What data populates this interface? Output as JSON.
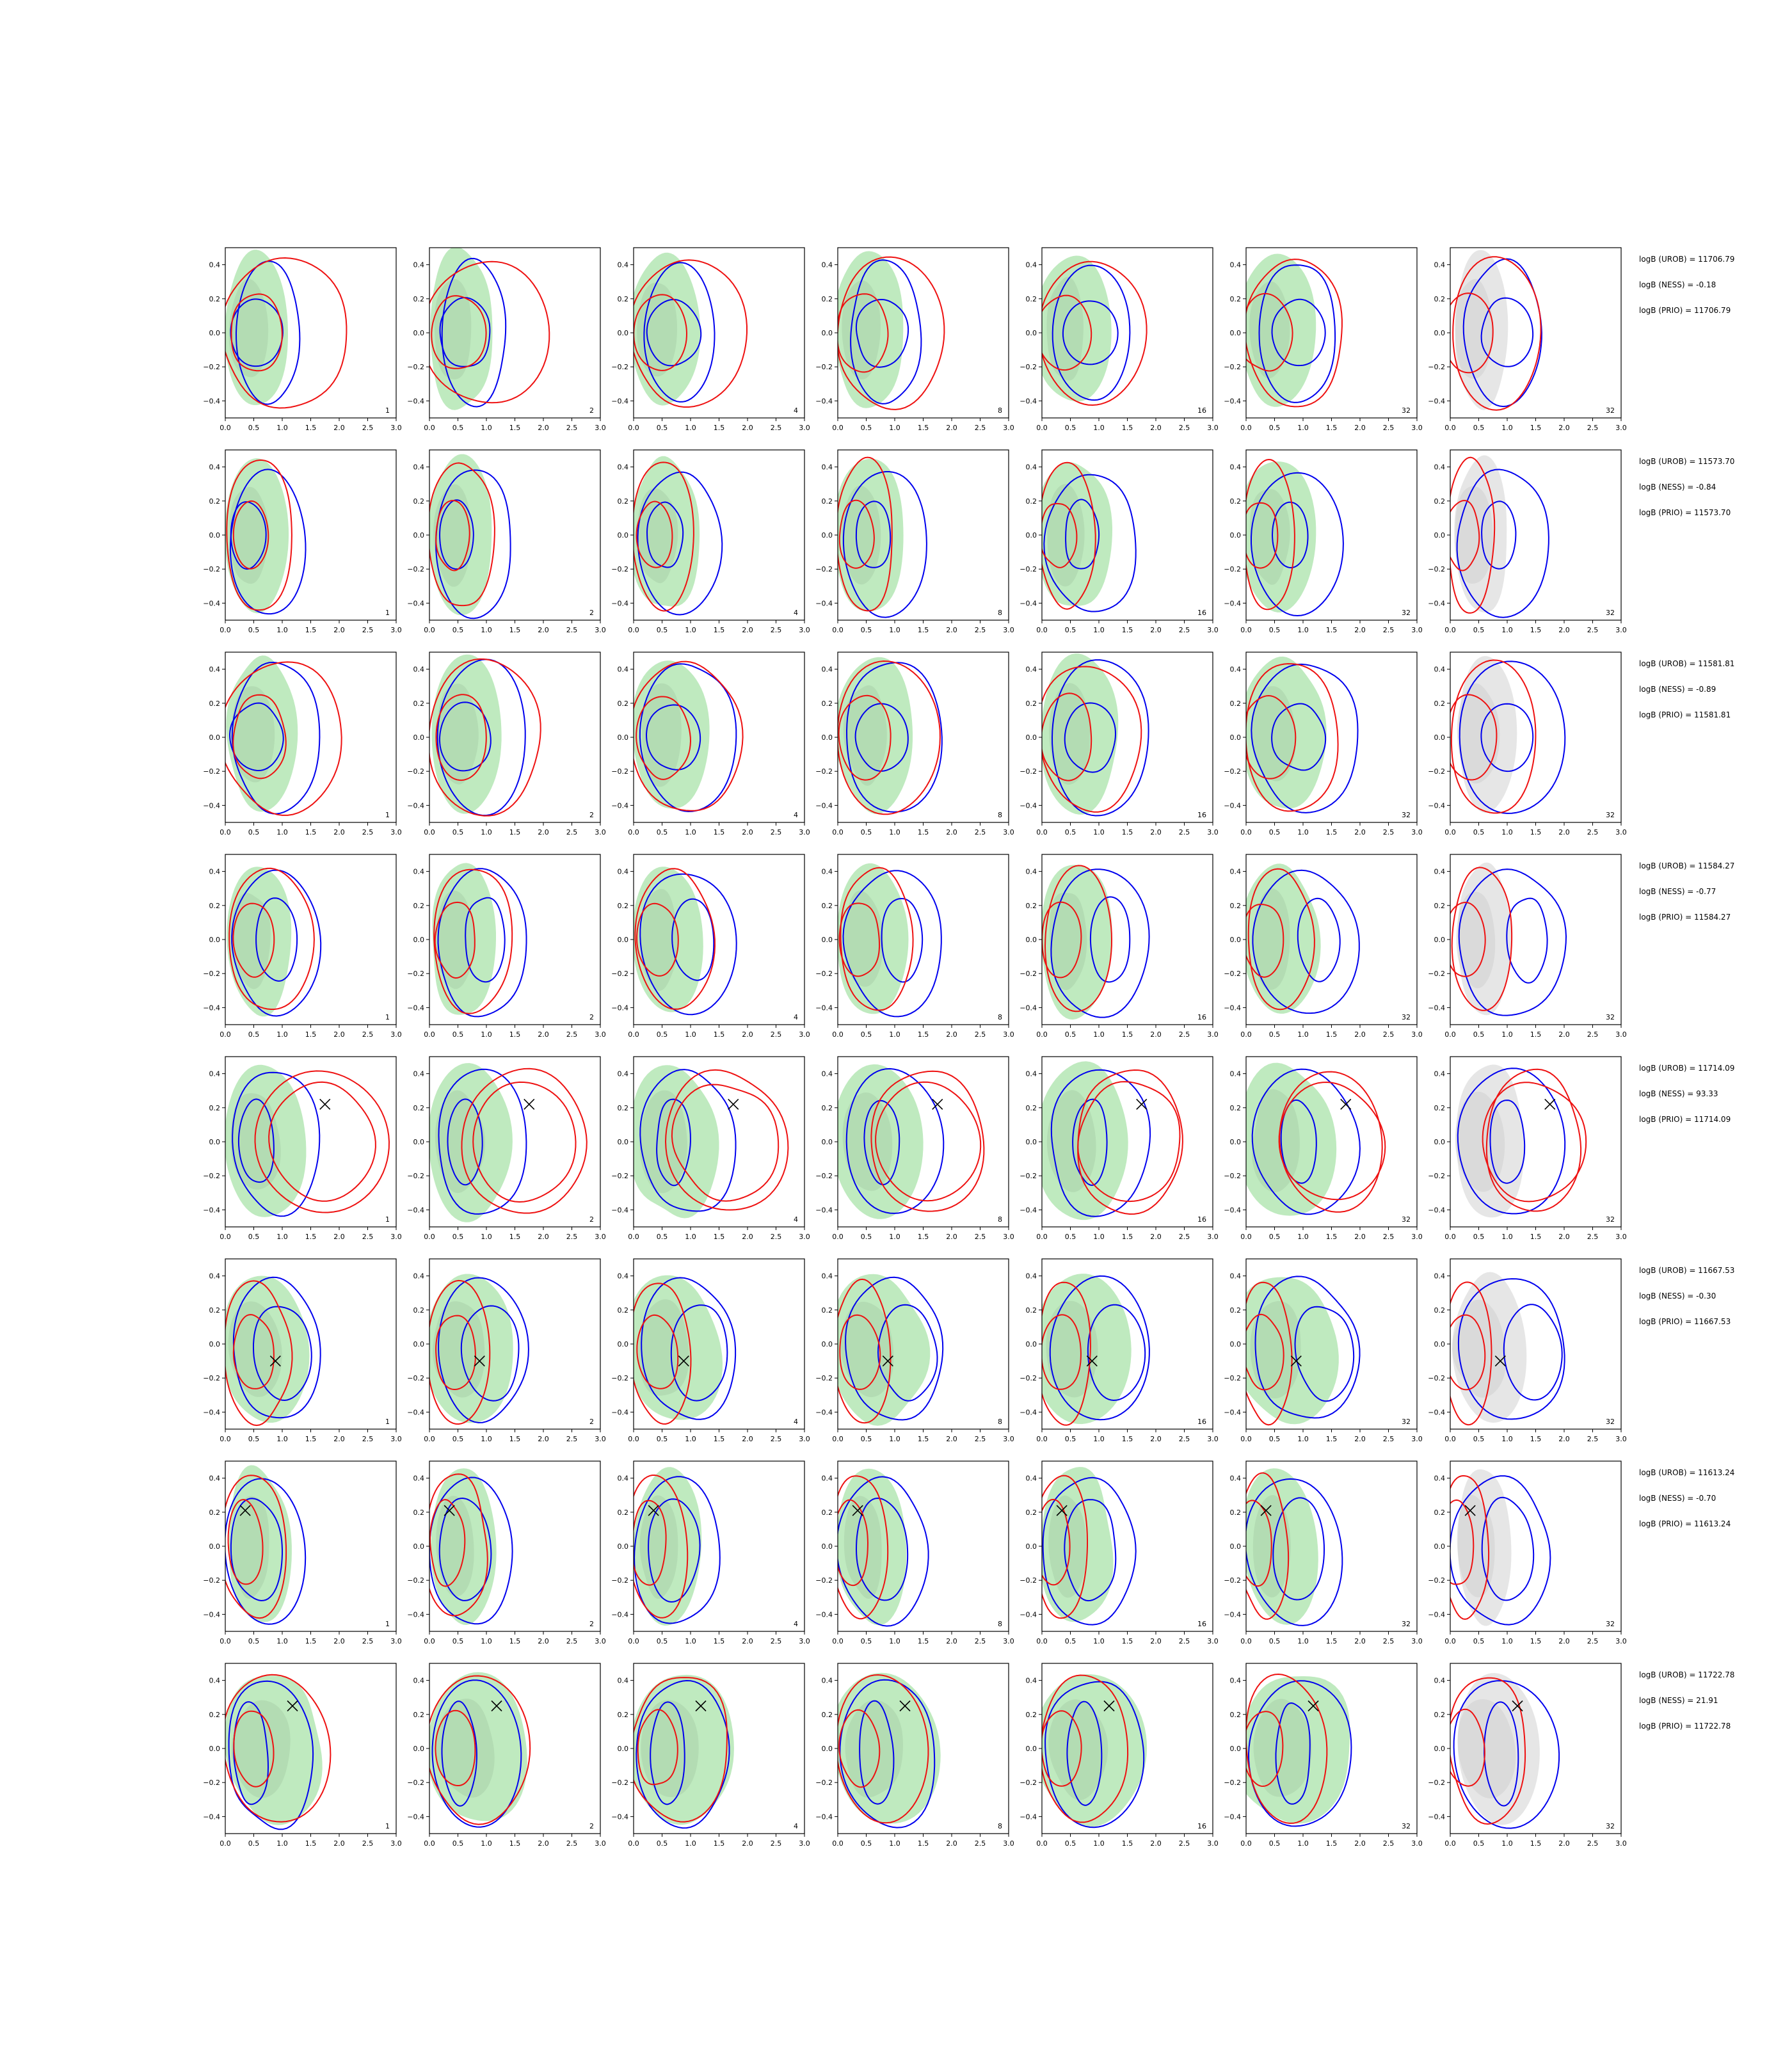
{
  "colors": {
    "posterior_fill": "#bfeabf",
    "posterior_fill_dark": "#a9cfa9",
    "prior_fill": "#e6e6e6",
    "prior_fill_dark": "#d0d0d0",
    "contour_blue": "#0000ee",
    "contour_red": "#ee1111",
    "true_marker": "#000000"
  },
  "chart_data": {
    "type": "contour-grid",
    "rows": 8,
    "cols": 7,
    "xlim": [
      0.0,
      3.0
    ],
    "ylim": [
      -0.5,
      0.5
    ],
    "x_ticks": [
      "0.0",
      "0.5",
      "1.0",
      "1.5",
      "2.0",
      "2.5",
      "3.0"
    ],
    "y_ticks": [
      "0.4",
      "0.2",
      "0.0",
      "−0.2",
      "−0.4"
    ],
    "x_tick_values": [
      0.0,
      0.5,
      1.0,
      1.5,
      2.0,
      2.5,
      3.0
    ],
    "y_tick_values": [
      0.4,
      0.2,
      0.0,
      -0.2,
      -0.4
    ],
    "panel_labels": [
      "1",
      "2",
      "4",
      "8",
      "16",
      "32",
      "32"
    ],
    "last_column_fill": "prior",
    "rows_data": [
      {
        "logB_UROB": "logB (UROB) = 11706.79",
        "logB_NESS": "logB (NESS) = -0.18",
        "logB_PRIO": "logB (PRIO) = 11706.79",
        "marker": null
      },
      {
        "logB_UROB": "logB (UROB) = 11573.70",
        "logB_NESS": "logB (NESS) = -0.84",
        "logB_PRIO": "logB (PRIO) = 11573.70",
        "marker": null
      },
      {
        "logB_UROB": "logB (UROB) = 11581.81",
        "logB_NESS": "logB (NESS) = -0.89",
        "logB_PRIO": "logB (PRIO) = 11581.81",
        "marker": null
      },
      {
        "logB_UROB": "logB (UROB) = 11584.27",
        "logB_NESS": "logB (NESS) = -0.77",
        "logB_PRIO": "logB (PRIO) = 11584.27",
        "marker": null
      },
      {
        "logB_UROB": "logB (UROB) = 11714.09",
        "logB_NESS": "logB (NESS) = 93.33",
        "logB_PRIO": "logB (PRIO) = 11714.09",
        "marker": [
          1.75,
          0.22
        ]
      },
      {
        "logB_UROB": "logB (UROB) = 11667.53",
        "logB_NESS": "logB (NESS) = -0.30",
        "logB_PRIO": "logB (PRIO) = 11667.53",
        "marker": [
          0.88,
          -0.1
        ]
      },
      {
        "logB_UROB": "logB (UROB) = 11613.24",
        "logB_NESS": "logB (NESS) = -0.70",
        "logB_PRIO": "logB (PRIO) = 11613.24",
        "marker": [
          0.35,
          0.21
        ]
      },
      {
        "logB_UROB": "logB (UROB) = 11722.78",
        "logB_NESS": "logB (NESS) = 21.91",
        "logB_PRIO": "logB (PRIO) = 11722.78",
        "marker": [
          1.18,
          0.25
        ]
      }
    ]
  }
}
